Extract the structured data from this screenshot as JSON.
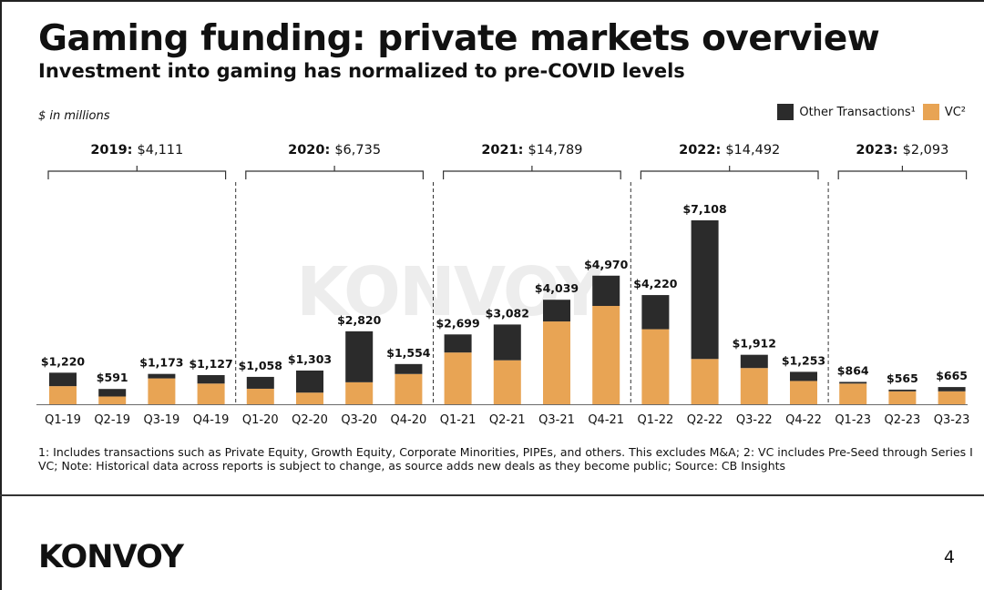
{
  "header": {
    "title": "Gaming funding: private markets overview",
    "subtitle": "Investment into gaming has normalized to pre-COVID levels"
  },
  "units_label": "$ in millions",
  "legend": {
    "other_label": "Other Transactions¹",
    "vc_label": "VC²"
  },
  "colors": {
    "other": "#2b2b2b",
    "vc": "#e8a454",
    "baseline": "#6b6b6b"
  },
  "chart_data": {
    "type": "bar",
    "stacked": true,
    "title": "Gaming funding: private markets overview",
    "ylabel": "$ in millions",
    "ylim": [
      0,
      7500
    ],
    "grid": false,
    "legend_position": "top-right",
    "categories": [
      "Q1-19",
      "Q2-19",
      "Q3-19",
      "Q4-19",
      "Q1-20",
      "Q2-20",
      "Q3-20",
      "Q4-20",
      "Q1-21",
      "Q2-21",
      "Q3-21",
      "Q4-21",
      "Q1-22",
      "Q2-22",
      "Q3-22",
      "Q4-22",
      "Q1-23",
      "Q2-23",
      "Q3-23"
    ],
    "totals": [
      1220,
      591,
      1173,
      1127,
      1058,
      1303,
      2820,
      1554,
      2699,
      3082,
      4039,
      4970,
      4220,
      7108,
      1912,
      1253,
      864,
      565,
      665
    ],
    "total_labels": [
      "$1,220",
      "$591",
      "$1,173",
      "$1,127",
      "$1,058",
      "$1,303",
      "$2,820",
      "$1,554",
      "$2,699",
      "$3,082",
      "$4,039",
      "$4,970",
      "$4,220",
      "$7,108",
      "$1,912",
      "$1,253",
      "$864",
      "$565",
      "$665"
    ],
    "series": [
      {
        "name": "VC²",
        "values": [
          700,
          300,
          1000,
          800,
          600,
          450,
          850,
          1170,
          2000,
          1700,
          3200,
          3800,
          2900,
          1750,
          1400,
          900,
          800,
          500,
          500
        ]
      },
      {
        "name": "Other Transactions¹",
        "values": [
          520,
          291,
          173,
          327,
          458,
          853,
          1970,
          384,
          699,
          1382,
          839,
          1170,
          1320,
          5358,
          512,
          353,
          64,
          65,
          165
        ]
      }
    ],
    "year_groups": [
      {
        "year": "2019:",
        "total": "$4,111"
      },
      {
        "year": "2020:",
        "total": "$6,735"
      },
      {
        "year": "2021:",
        "total": "$14,789"
      },
      {
        "year": "2022:",
        "total": "$14,492"
      },
      {
        "year": "2023:",
        "total": "$2,093"
      }
    ]
  },
  "footnote": "1: Includes transactions such as Private Equity, Growth Equity, Corporate Minorities, PIPEs, and others. This excludes M&A; 2: VC includes Pre-Seed through Series I VC; Note: Historical data across reports is subject to change, as source adds new deals as they become public; Source: CB Insights",
  "brand": "KONVOY",
  "watermark": "KONVOY",
  "page_number": "4"
}
